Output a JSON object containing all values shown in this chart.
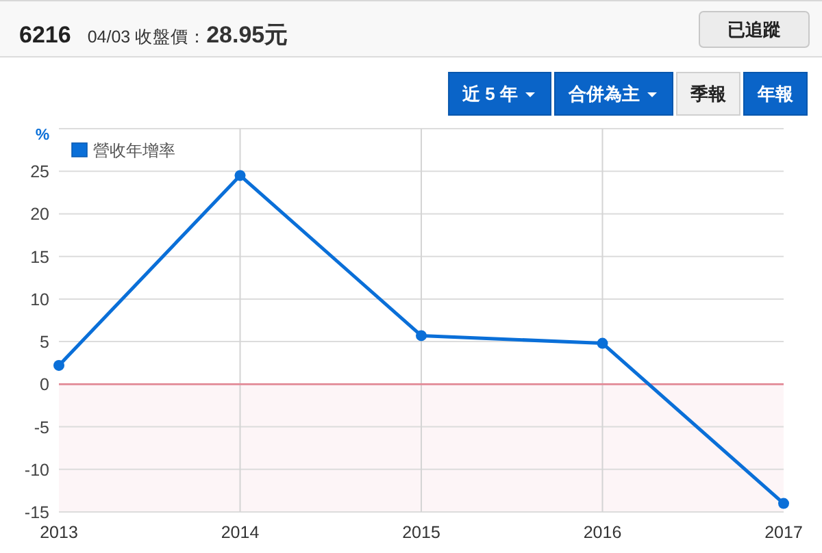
{
  "chart_data": {
    "type": "line",
    "title": "6216",
    "subtitle": "04/03 收盤價：**28.95元**",
    "ylabel": "%",
    "categories": [
      "2013",
      "2014",
      "2015",
      "2016",
      "2017"
    ],
    "series": [
      {
        "name": "營收年增率",
        "color": "#0a6fd8",
        "values": [
          2.2,
          24.5,
          5.7,
          4.8,
          -14
        ]
      }
    ],
    "ylim": [
      -15,
      30
    ],
    "yticks": [
      -15,
      -10,
      -5,
      0,
      5,
      10,
      15,
      20,
      25,
      {
        "value": 30,
        "label": null
      }
    ],
    "grid": true,
    "legend": "top left",
    "marker": "circle",
    "line_style": "solid",
    "ref_lines": [
      {
        "axis": "y",
        "value": 0,
        "color": "#e38a97"
      }
    ],
    "bands": [
      {
        "axis": "y",
        "from": -15,
        "to": 0,
        "color": "#fdf5f7"
      }
    ],
    "annotations": [
      "已追蹤",
      "近 5 年",
      "合併為主",
      "季報",
      "年報"
    ]
  }
}
